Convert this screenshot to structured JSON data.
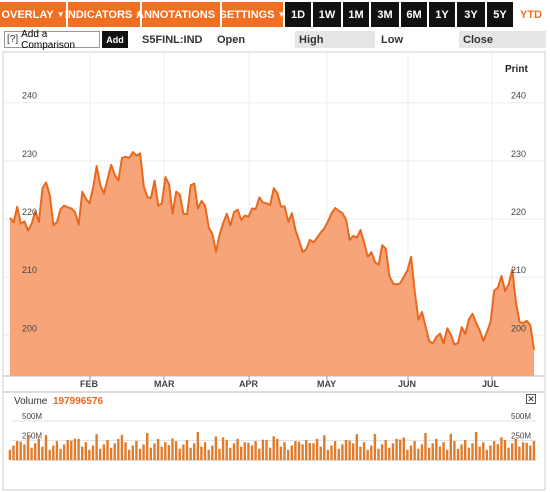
{
  "toolbar": {
    "menus": [
      {
        "label": "OVERLAY"
      },
      {
        "label": "INDICATORS"
      },
      {
        "label": "ANNOTATIONS"
      },
      {
        "label": "SETTINGS"
      }
    ],
    "caret": "▼",
    "ranges": [
      "1D",
      "1W",
      "1M",
      "3M",
      "6M",
      "1Y",
      "3Y",
      "5Y",
      "YTD"
    ],
    "active_range": "YTD"
  },
  "quotebar": {
    "compare_icon": "[?]",
    "compare_label": "Add a Comparison",
    "add_label": "Add",
    "ticker": "S5FINL:IND",
    "open_label": "Open",
    "high_label": "High",
    "low_label": "Low",
    "close_label": "Close"
  },
  "print_label": "Print",
  "volume": {
    "label": "Volume",
    "value": "197996576",
    "ticks": [
      "500M",
      "250M"
    ]
  },
  "colors": {
    "accent": "#f26f21",
    "area_fill": "#f7a578",
    "line": "#e8681e",
    "bar": "#e07b2c"
  },
  "chart_data": {
    "type": "area",
    "ylim": [
      193,
      247
    ],
    "yticks": [
      200,
      210,
      220,
      230,
      240
    ],
    "xticks": [
      "FEB",
      "MAR",
      "APR",
      "MAY",
      "JUN",
      "JUL"
    ],
    "series": [
      {
        "values": [
          220.2,
          219.4,
          222.1,
          219.2,
          219.6,
          218.0,
          219.2,
          221.3,
          219.5,
          225.3,
          226.3,
          224.1,
          218.9,
          219.5,
          221.7,
          222.3,
          222.0,
          221.8,
          221.2,
          219.0,
          224.7,
          223.5,
          222.7,
          225.4,
          229.1,
          225.8,
          224.4,
          226.9,
          229.3,
          227.6,
          226.6,
          230.5,
          230.7,
          230.5,
          231.5,
          230.9,
          231.3,
          225.7,
          223.8,
          223.6,
          226.6,
          222.3,
          222.7,
          227.2,
          226.0,
          220.9,
          224.7,
          224.2,
          220.9,
          220.8,
          225.8,
          226.1,
          221.8,
          223.1,
          222.3,
          218.5,
          217.4,
          214.4,
          217.3,
          219.3,
          220.9,
          218.9,
          221.2,
          221.6,
          219.8,
          220.6,
          220.4,
          221.8,
          221.7,
          223.7,
          222.8,
          222.7,
          222.4,
          225.3,
          224.4,
          222.1,
          222.2,
          219.5,
          221.0,
          218.1,
          216.3,
          214.3,
          214.8,
          216.4,
          216.0,
          216.8,
          217.7,
          218.4,
          219.6,
          221.0,
          221.9,
          221.4,
          221.0,
          219.9,
          216.4,
          217.1,
          216.8,
          218.1,
          215.9,
          213.5,
          214.3,
          212.6,
          212.1,
          215.5,
          214.9,
          210.2,
          208.9,
          208.7,
          209.0,
          210.1,
          211.2,
          213.5,
          207.6,
          202.7,
          204.0,
          201.5,
          199.0,
          198.6,
          199.7,
          200.3,
          198.6,
          201.2,
          200.1,
          198.4,
          198.7,
          201.4,
          200.2,
          202.8,
          203.7,
          202.1,
          200.8,
          199.0,
          200.6,
          202.3,
          207.7,
          208.2,
          210.2,
          207.6,
          208.8,
          211.3,
          205.7,
          202.3,
          202.1,
          202.5,
          201.7,
          197.5
        ]
      }
    ],
    "volume_ticks": [
      250,
      500
    ],
    "volume_max": 640
  }
}
